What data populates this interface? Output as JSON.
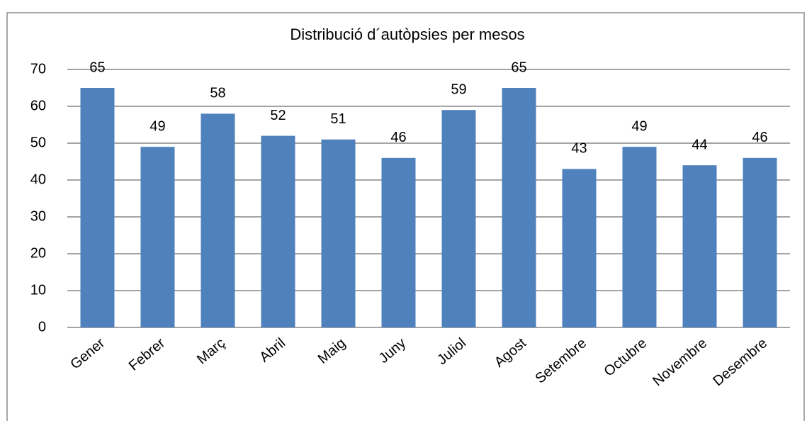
{
  "chart_data": {
    "type": "bar",
    "title": "Distribució d´autòpsies per mesos",
    "categories": [
      "Gener",
      "Febrer",
      "Març",
      "Abril",
      "Maig",
      "Juny",
      "Juliol",
      "Agost",
      "Setembre",
      "Octubre",
      "Novembre",
      "Desembre"
    ],
    "values": [
      65,
      49,
      58,
      52,
      51,
      46,
      59,
      65,
      43,
      49,
      44,
      46
    ],
    "color": "#4f81bd",
    "ylim": [
      0,
      70
    ],
    "yticks": [
      0,
      10,
      20,
      30,
      40,
      50,
      60,
      70
    ],
    "grid": true
  }
}
